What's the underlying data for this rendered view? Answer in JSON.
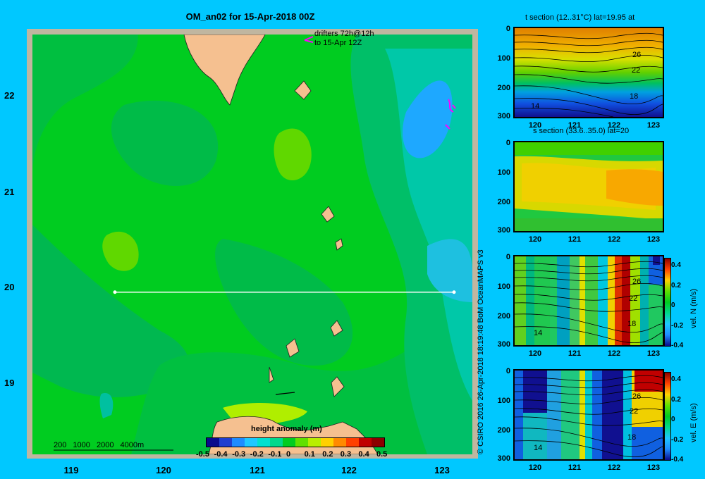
{
  "title": "OM_an02 for 15-Apr-2018 00Z",
  "map": {
    "lat_ticks": [
      "22",
      "21",
      "20",
      "19"
    ],
    "lon_ticks": [
      "119",
      "120",
      "121",
      "122",
      "123"
    ],
    "drifter_note_line1": "drifters 72h@12h",
    "drifter_note_line2": "to 15-Apr 12Z",
    "scale_labels": [
      "200",
      "1000",
      "2000",
      "4000m"
    ],
    "colorbar_title": "height anomaly (m)",
    "colorbar_ticks": [
      "-0.5",
      "-0.4",
      "-0.3",
      "-0.2",
      "-0.1",
      "0",
      "0.1",
      "0.2",
      "0.3",
      "0.4",
      "0.5"
    ],
    "colorbar_colors": [
      "#0a0a8c",
      "#1f3fd0",
      "#1e8cff",
      "#1ec8ff",
      "#00e0d0",
      "#00d88c",
      "#00cc20",
      "#60e000",
      "#b8ee00",
      "#ffd000",
      "#ff8a00",
      "#ff4000",
      "#c00000",
      "#8c0000"
    ],
    "section_line_lat": 20.0,
    "section_line_lon": [
      119.5,
      123.2
    ]
  },
  "panels": [
    {
      "title": "t section (12..31°C) lat=19.95 at",
      "y_ticks": [
        "0",
        "100",
        "200",
        "300"
      ],
      "x_ticks": [
        "120",
        "121",
        "122",
        "123"
      ],
      "contour_labels": [
        "26",
        "22",
        "18",
        "14"
      ]
    },
    {
      "title": "s section (33.6..35.0) lat=20",
      "y_ticks": [
        "0",
        "100",
        "200",
        "300"
      ],
      "x_ticks": [
        "120",
        "121",
        "122",
        "123"
      ]
    },
    {
      "title": "",
      "y_ticks": [
        "0",
        "100",
        "200",
        "300"
      ],
      "x_ticks": [
        "120",
        "121",
        "122",
        "123"
      ],
      "contour_labels": [
        "26",
        "22",
        "18",
        "14"
      ],
      "colorbar_ticks": [
        "0.4",
        "0.2",
        "0",
        "-0.2",
        "-0.4"
      ],
      "colorbar_label": "vel. N (m/s)"
    },
    {
      "title": "",
      "y_ticks": [
        "0",
        "100",
        "200",
        "300"
      ],
      "x_ticks": [
        "120",
        "121",
        "122",
        "123"
      ],
      "contour_labels": [
        "26",
        "22",
        "18",
        "14"
      ],
      "colorbar_ticks": [
        "0.4",
        "0.2",
        "0",
        "-0.2",
        "-0.4"
      ],
      "colorbar_label": "vel. E (m/s)"
    }
  ],
  "credit": "© CSIRO 2016   26-Apr-2018 18:19:48 BoM OceanMAPS v3"
}
